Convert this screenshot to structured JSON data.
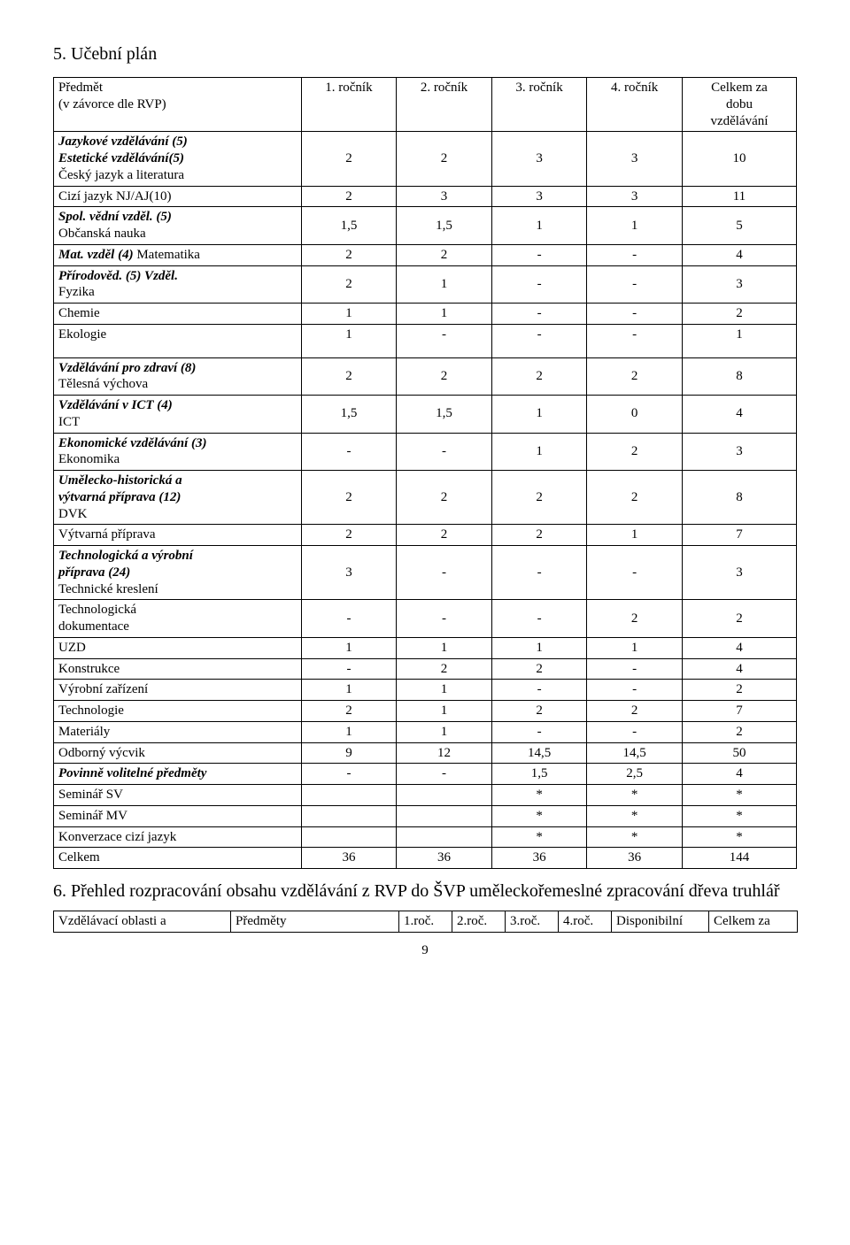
{
  "section1_title": "5. Učební plán",
  "header": {
    "subject_label_line1": "Předmět",
    "subject_label_line2": "(v závorce dle RVP)",
    "y1": "1. ročník",
    "y2": "2. ročník",
    "y3": "3. ročník",
    "y4": "4. ročník",
    "total_line1": "Celkem za",
    "total_line2": "dobu",
    "total_line3": "vzdělávání"
  },
  "rows": [
    {
      "label": [
        "<i><b>Jazykové  vzdělávání (5)</b></i>",
        "<i><b>Estetické vzdělávání(5)</b></i>",
        "Český jazyk a literatura"
      ],
      "y1": "2",
      "y2": "2",
      "y3": "3",
      "y4": "3",
      "tot": "10"
    },
    {
      "label": [
        "Cizí jazyk   NJ/AJ(10)"
      ],
      "y1": "2",
      "y2": "3",
      "y3": "3",
      "y4": "3",
      "tot": "11"
    },
    {
      "label": [
        "<i><b>Spol. vědní vzděl. (5)</b></i>",
        "Občanská nauka"
      ],
      "y1": "1,5",
      "y2": "1,5",
      "y3": "1",
      "y4": "1",
      "tot": "5"
    },
    {
      "label": [
        "<i><b>Mat. vzděl (4)</b></i> Matematika"
      ],
      "y1": "2",
      "y2": "2",
      "y3": "-",
      "y4": "-",
      "tot": "4"
    },
    {
      "label": [
        "<i><b>Přírodověd. (5) Vzděl.</b></i>",
        "Fyzika"
      ],
      "y1": "2",
      "y2": "1",
      "y3": "-",
      "y4": "-",
      "tot": "3",
      "valign_center": true
    },
    {
      "label": [
        "Chemie"
      ],
      "y1": "1",
      "y2": "1",
      "y3": "-",
      "y4": "-",
      "tot": "2",
      "valign_center_rest": true
    },
    {
      "label": [
        "Ekologie"
      ],
      "y1": "1",
      "y2": "-",
      "y3": "-",
      "y4": "-",
      "tot": "1",
      "tall": true
    },
    {
      "label": [
        "<i><b>Vzdělávání pro zdraví (8)</b></i>",
        "Tělesná výchova"
      ],
      "y1": "2",
      "y2": "2",
      "y3": "2",
      "y4": "2",
      "tot": "8"
    },
    {
      "label": [
        "<i><b>Vzdělávání v ICT (4)</b></i>",
        "ICT"
      ],
      "y1": "1,5",
      "y2": "1,5",
      "y3": "1",
      "y4": "0",
      "tot": "4"
    },
    {
      "label": [
        "<i><b>Ekonomické vzdělávání (3)</b></i>",
        "Ekonomika"
      ],
      "y1": "-",
      "y2": "-",
      "y3": "1",
      "y4": "2",
      "tot": "3"
    },
    {
      "label": [
        "<i><b>Umělecko-historická a</b></i>",
        "<i><b>výtvarná příprava  (12)</b></i>",
        "DVK"
      ],
      "y1": "2",
      "y2": "2",
      "y3": "2",
      "y4": "2",
      "tot": "8"
    },
    {
      "label": [
        "Výtvarná příprava"
      ],
      "y1": "2",
      "y2": "2",
      "y3": "2",
      "y4": "1",
      "tot": "7",
      "valign_bottom": true
    },
    {
      "label": [
        "<i><b>Technologická a výrobní</b></i>",
        "<i><b>příprava (24)</b></i>",
        "Technické kreslení"
      ],
      "y1": "3",
      "y2": "-",
      "y3": "-",
      "y4": "-",
      "tot": "3"
    },
    {
      "label": [
        "Technologická",
        "dokumentace"
      ],
      "y1": "-",
      "y2": "-",
      "y3": "-",
      "y4": "2",
      "tot": "2"
    },
    {
      "label": [
        "UZD"
      ],
      "y1": "1",
      "y2": "1",
      "y3": "1",
      "y4": "1",
      "tot": "4"
    },
    {
      "label": [
        " Konstrukce"
      ],
      "y1": "-",
      "y2": "2",
      "y3": "2",
      "y4": "-",
      "tot": "4"
    },
    {
      "label": [
        "Výrobní zařízení"
      ],
      "y1": "1",
      "y2": "1",
      "y3": "-",
      "y4": "-",
      "tot": "2"
    },
    {
      "label": [
        "Technologie"
      ],
      "y1": "2",
      "y2": "1",
      "y3": "2",
      "y4": "2",
      "tot": "7"
    },
    {
      "label": [
        "Materiály"
      ],
      "y1": "1",
      "y2": "1",
      "y3": "-",
      "y4": "-",
      "tot": "2"
    },
    {
      "label": [
        "Odborný výcvik"
      ],
      "y1": "9",
      "y2": "12",
      "y3": "14,5",
      "y4": "14,5",
      "tot": "50"
    },
    {
      "label": [
        "<i><b>Povinně volitelné předměty</b></i>"
      ],
      "y1": "-",
      "y2": "-",
      "y3": "1,5",
      "y4": "2,5",
      "tot": "4"
    },
    {
      "label": [
        "Seminář SV"
      ],
      "y1": "",
      "y2": "",
      "y3": "*",
      "y4": "*",
      "tot": "*"
    },
    {
      "label": [
        "Seminář MV"
      ],
      "y1": "",
      "y2": "",
      "y3": "*",
      "y4": "*",
      "tot": "*"
    },
    {
      "label": [
        "Konverzace cizí jazyk"
      ],
      "y1": "",
      "y2": "",
      "y3": "*",
      "y4": "*",
      "tot": "*"
    },
    {
      "label": [
        "Celkem"
      ],
      "y1": "36",
      "y2": "36",
      "y3": "36",
      "y4": "36",
      "tot": "144"
    }
  ],
  "section2_title": "6. Přehled rozpracování obsahu vzdělávání z RVP do ŠVP uměleckořemeslné zpracování dřeva truhlář",
  "table2": {
    "c1": "Vzdělávací oblasti a",
    "c2": "Předměty",
    "c3": "1.roč.",
    "c4": "2.roč.",
    "c5": "3.roč.",
    "c6": "4.roč.",
    "c7": "Disponibilní",
    "c8": "Celkem za"
  },
  "page_number": "9"
}
